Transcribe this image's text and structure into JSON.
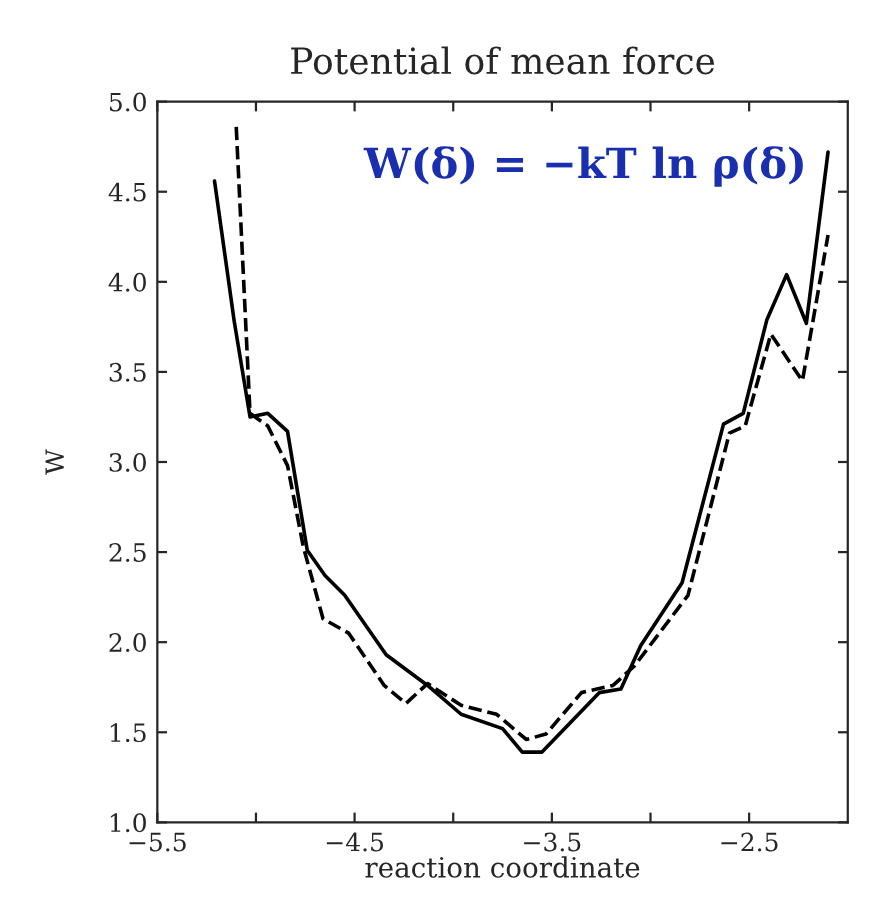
{
  "chart_data": {
    "type": "line",
    "title": "Potential of mean force",
    "xlabel": "reaction coordinate",
    "ylabel": "W",
    "xlim": [
      -5.5,
      -2.0
    ],
    "xticks": [
      -5.5,
      {
        "value": -5.0,
        "label": null
      },
      -4.5,
      {
        "value": -4.0,
        "label": null
      },
      -3.5,
      {
        "value": -3.0,
        "label": null
      },
      -2.5
    ],
    "ylim": [
      1.0,
      5.0
    ],
    "yticks": [
      {
        "value": 1,
        "label": "1.0"
      },
      1.5,
      {
        "value": 2,
        "label": "2.0"
      },
      2.5,
      {
        "value": 3,
        "label": "3.0"
      },
      3.5,
      {
        "value": 4,
        "label": "4.0"
      },
      4.5,
      {
        "value": 5,
        "label": "5.0"
      }
    ],
    "grid": false,
    "marker": "none",
    "annotations": [
      "W(δ) = −kT ln ρ(δ)"
    ],
    "series": [
      {
        "color": "#000000",
        "line_style": "solid",
        "x": [
          -5.21,
          -5.11,
          -5.03,
          -4.94,
          -4.84,
          -4.74,
          -4.65,
          -4.55,
          -4.34,
          -4.13,
          -3.96,
          -3.75,
          -3.65,
          -3.55,
          -3.26,
          -3.15,
          -3.05,
          -2.84,
          -2.63,
          -2.53,
          -2.41,
          -2.31,
          -2.21,
          -2.1
        ],
        "values": [
          4.56,
          3.78,
          3.25,
          3.27,
          3.17,
          2.51,
          2.37,
          2.26,
          1.93,
          1.76,
          1.6,
          1.52,
          1.39,
          1.39,
          1.72,
          1.74,
          1.98,
          2.33,
          3.21,
          3.27,
          3.79,
          4.04,
          3.77,
          4.72
        ]
      },
      {
        "color": "#000000",
        "line_style": "dashed",
        "x": [
          -5.1,
          -5.03,
          -4.94,
          -4.84,
          -4.76,
          -4.66,
          -4.53,
          -4.35,
          -4.24,
          -4.13,
          -3.96,
          -3.78,
          -3.63,
          -3.53,
          -3.35,
          -3.19,
          -3.08,
          -2.81,
          -2.6,
          -2.52,
          -2.39,
          -2.23,
          -2.1
        ],
        "values": [
          4.86,
          3.27,
          3.2,
          2.98,
          2.53,
          2.13,
          2.05,
          1.76,
          1.66,
          1.77,
          1.65,
          1.6,
          1.46,
          1.49,
          1.72,
          1.76,
          1.87,
          2.26,
          3.16,
          3.2,
          3.71,
          3.45,
          4.26
        ]
      }
    ]
  }
}
